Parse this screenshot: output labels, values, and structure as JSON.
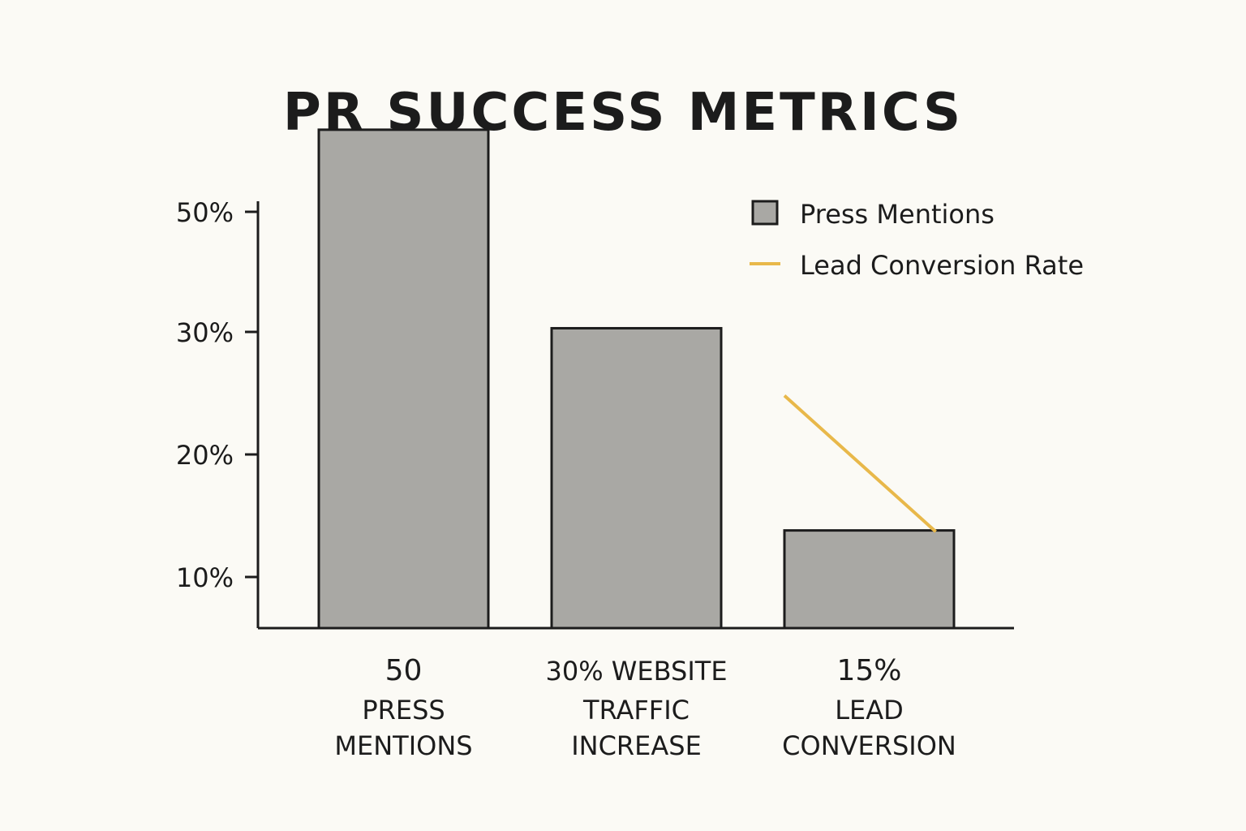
{
  "chart_data": {
    "type": "bar",
    "title": "PR SUCCESS METRICS",
    "xlabel": "",
    "ylabel": "",
    "y_ticks": [
      {
        "value": 10,
        "label": "10%"
      },
      {
        "value": 20,
        "label": "20%"
      },
      {
        "value": 30,
        "label": "30%"
      },
      {
        "value": 50,
        "label": "50%"
      }
    ],
    "categories": [
      {
        "lines": [
          "50",
          "PRESS",
          "MENTIONS"
        ]
      },
      {
        "lines": [
          "30% WEBSITE",
          "TRAFFIC",
          "INCREASE"
        ]
      },
      {
        "lines": [
          "15%",
          "LEAD",
          "CONVERSION"
        ]
      }
    ],
    "series": [
      {
        "name": "Press Mentions",
        "type": "bar",
        "values": [
          46.5,
          30.3,
          13.8
        ],
        "color": "#a9a8a4"
      },
      {
        "name": "Lead Conversion Rate",
        "type": "line",
        "points": [
          {
            "x": 2.0,
            "y": 24.8
          },
          {
            "x": 2.65,
            "y": 13.7
          }
        ],
        "color": "#e8b84a"
      }
    ],
    "legend_position": "top-right",
    "grid": false
  }
}
